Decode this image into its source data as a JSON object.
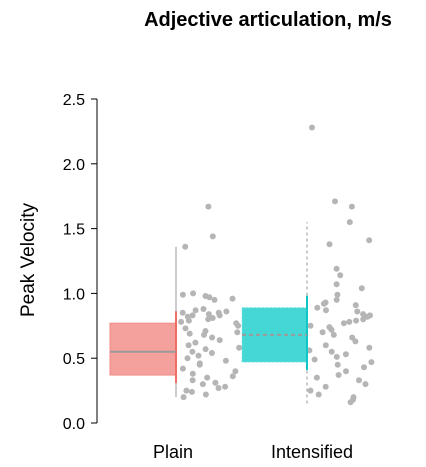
{
  "chart_data": {
    "type": "boxplot",
    "title": "Adjective articulation, m/s",
    "xlabel": "",
    "ylabel": "Peak Velocity",
    "ylim": [
      0,
      2.5
    ],
    "yticks": [
      "0.0",
      "0.5",
      "1.0",
      "1.5",
      "2.0",
      "2.5"
    ],
    "grid": false,
    "categories": [
      "Plain",
      "Intensified"
    ],
    "colors": {
      "Plain": "#f4a09c",
      "Intensified": "#45d6d6",
      "points": "#b5b5b5",
      "median": "#9a9a9a"
    },
    "boxes": [
      {
        "category": "Plain",
        "q1": 0.37,
        "median": 0.55,
        "q3": 0.77,
        "whisker_low": 0.2,
        "whisker_high": 1.36,
        "line_style": "solid"
      },
      {
        "category": "Intensified",
        "q1": 0.47,
        "median": 0.68,
        "q3": 0.89,
        "whisker_low": 0.15,
        "whisker_high": 1.55,
        "line_style": "dashed"
      }
    ],
    "points": [
      {
        "category": "Plain",
        "values": [
          1.67,
          1.44,
          1.36,
          1.0,
          0.98,
          0.97,
          0.99,
          0.96,
          0.95,
          0.88,
          0.87,
          0.86,
          0.85,
          0.85,
          0.84,
          0.83,
          0.83,
          0.82,
          0.81,
          0.8,
          0.79,
          0.78,
          0.77,
          0.75,
          0.73,
          0.71,
          0.7,
          0.69,
          0.68,
          0.66,
          0.64,
          0.62,
          0.6,
          0.58,
          0.57,
          0.55,
          0.54,
          0.52,
          0.5,
          0.48,
          0.46,
          0.45,
          0.42,
          0.4,
          0.38,
          0.36,
          0.35,
          0.33,
          0.31,
          0.3,
          0.28,
          0.27,
          0.25,
          0.24,
          0.22,
          0.2
        ]
      },
      {
        "category": "Intensified",
        "values": [
          2.28,
          1.71,
          1.67,
          1.55,
          1.41,
          1.38,
          1.19,
          1.14,
          1.07,
          1.04,
          0.99,
          0.95,
          0.93,
          0.92,
          0.91,
          0.89,
          0.87,
          0.86,
          0.84,
          0.83,
          0.82,
          0.8,
          0.79,
          0.78,
          0.77,
          0.75,
          0.74,
          0.72,
          0.7,
          0.68,
          0.66,
          0.63,
          0.6,
          0.58,
          0.56,
          0.55,
          0.53,
          0.51,
          0.49,
          0.47,
          0.45,
          0.43,
          0.4,
          0.37,
          0.35,
          0.33,
          0.3,
          0.28,
          0.25,
          0.22,
          0.2,
          0.18,
          0.16
        ]
      }
    ]
  }
}
